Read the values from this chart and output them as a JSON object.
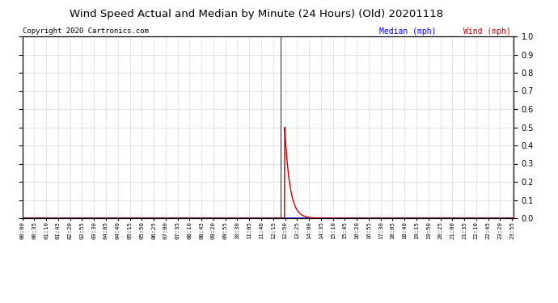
{
  "title": "Wind Speed Actual and Median by Minute (24 Hours) (Old) 20201118",
  "copyright": "Copyright 2020 Cartronics.com",
  "legend_median_label": "Median (mph)",
  "legend_wind_label": "Wind (mph)",
  "median_color": "#0000ff",
  "wind_color": "#cc0000",
  "vline_color": "#333333",
  "ymin": 0.0,
  "ymax": 1.0,
  "yticks": [
    0.0,
    0.1,
    0.2,
    0.3,
    0.4,
    0.5,
    0.6,
    0.7,
    0.8,
    0.9,
    1.0
  ],
  "spike_minute": 769,
  "spike_peak": 0.5,
  "decay_tau": 15.0,
  "total_minutes": 1440,
  "background_color": "#ffffff",
  "grid_color": "#bbbbbb",
  "vline_minute": 757
}
